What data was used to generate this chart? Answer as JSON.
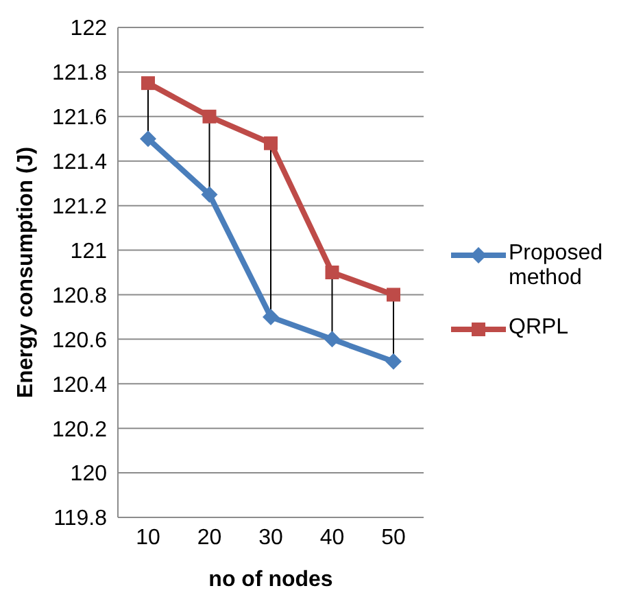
{
  "chart_data": {
    "type": "line",
    "xlabel": "no of nodes",
    "ylabel": "Energy consumption (J)",
    "categories": [
      "10",
      "20",
      "30",
      "40",
      "50"
    ],
    "series": [
      {
        "name": "Proposed method",
        "color": "#4a7ebb",
        "marker": "diamond",
        "values": [
          121.5,
          121.25,
          120.7,
          120.6,
          120.5
        ]
      },
      {
        "name": "QRPL",
        "color": "#be4b48",
        "marker": "square",
        "values": [
          121.75,
          121.6,
          121.48,
          120.9,
          120.8
        ]
      }
    ],
    "ylim": [
      119.8,
      122
    ],
    "yticks": [
      119.8,
      120,
      120.2,
      120.4,
      120.6,
      120.8,
      121,
      121.2,
      121.4,
      121.6,
      121.8,
      122
    ],
    "grid": "y",
    "legend": "right"
  }
}
